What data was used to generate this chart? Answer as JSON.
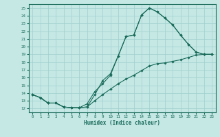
{
  "title": "",
  "xlabel": "Humidex (Indice chaleur)",
  "bg_color": "#c5e8e5",
  "line_color": "#1a6b5a",
  "grid_color": "#9fcfcc",
  "xlim": [
    -0.5,
    23.5
  ],
  "ylim": [
    11.5,
    25.5
  ],
  "xticks": [
    0,
    1,
    2,
    3,
    4,
    5,
    6,
    7,
    8,
    9,
    10,
    11,
    12,
    13,
    14,
    15,
    16,
    17,
    18,
    19,
    20,
    21,
    22,
    23
  ],
  "yticks": [
    12,
    13,
    14,
    15,
    16,
    17,
    18,
    19,
    20,
    21,
    22,
    23,
    24,
    25
  ],
  "curve1_x": [
    0,
    1,
    2,
    3,
    4,
    5,
    6,
    7,
    8,
    9,
    10,
    11,
    12,
    13,
    14,
    15,
    16,
    17,
    18,
    19,
    20,
    21,
    22,
    23
  ],
  "curve1_y": [
    13.8,
    13.4,
    12.7,
    12.7,
    12.2,
    12.1,
    12.1,
    12.2,
    13.8,
    15.6,
    16.5,
    18.8,
    21.3,
    21.5,
    24.1,
    25.0,
    24.5,
    23.7,
    22.8,
    21.5,
    20.3,
    19.3,
    19.0,
    19.0
  ],
  "curve2_x": [
    0,
    1,
    2,
    3,
    4,
    5,
    6,
    7,
    8,
    9,
    10,
    11,
    12,
    13,
    14,
    15,
    16,
    17,
    18,
    19,
    20,
    21,
    22,
    23
  ],
  "curve2_y": [
    13.8,
    13.4,
    12.7,
    12.7,
    12.2,
    12.1,
    12.1,
    12.6,
    14.2,
    15.2,
    16.3,
    18.8,
    21.3,
    21.5,
    24.1,
    25.0,
    24.5,
    23.7,
    22.8,
    21.5,
    20.3,
    19.3,
    19.0,
    19.0
  ],
  "curve3_x": [
    0,
    1,
    2,
    3,
    4,
    5,
    6,
    7,
    8,
    9,
    10,
    11,
    12,
    13,
    14,
    15,
    16,
    17,
    18,
    19,
    20,
    21,
    22,
    23
  ],
  "curve3_y": [
    13.8,
    13.4,
    12.7,
    12.7,
    12.2,
    12.1,
    12.1,
    12.2,
    13.0,
    13.8,
    14.5,
    15.2,
    15.8,
    16.3,
    16.9,
    17.5,
    17.8,
    17.9,
    18.1,
    18.3,
    18.6,
    18.9,
    19.0,
    19.0
  ]
}
